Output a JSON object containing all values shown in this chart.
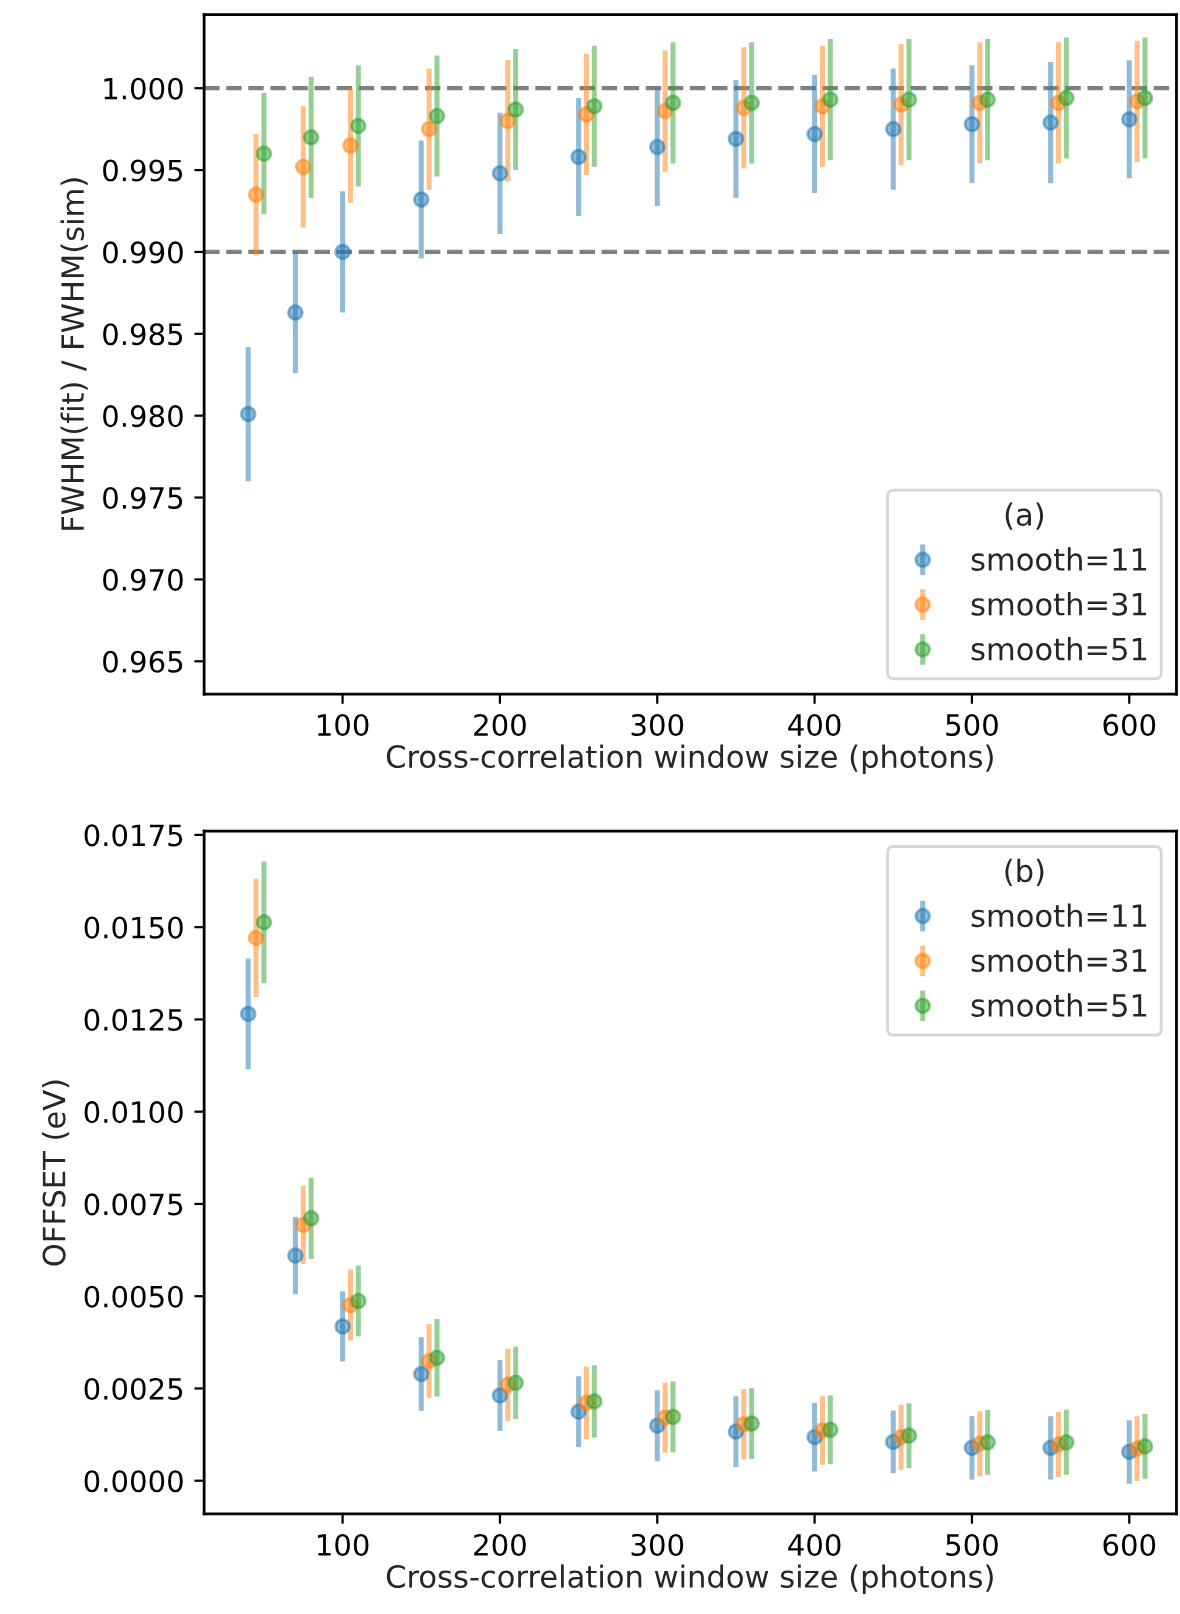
{
  "chart_data": [
    {
      "type": "scatter",
      "xlabel": "Cross-correlation window size (photons)",
      "ylabel": "FWHM(fit) / FWHM(sim)",
      "legend_title": "(a)",
      "legend": "bottom right",
      "marker": "circle",
      "grid": false,
      "xlim": [
        12,
        630
      ],
      "xticks": [
        100,
        200,
        300,
        400,
        500,
        600
      ],
      "ylim": [
        0.963,
        1.0045
      ],
      "yticks": [
        {
          "value": 0.965,
          "label": "0.965"
        },
        {
          "value": 0.97,
          "label": "0.970"
        },
        {
          "value": 0.975,
          "label": "0.975"
        },
        {
          "value": 0.98,
          "label": "0.980"
        },
        {
          "value": 0.985,
          "label": "0.985"
        },
        {
          "value": 0.99,
          "label": "0.990"
        },
        {
          "value": 0.995,
          "label": "0.995"
        },
        {
          "value": 1.0,
          "label": "1.000"
        }
      ],
      "ref_lines": [
        {
          "axis": "y",
          "value": 1.0,
          "color": "#808080",
          "line_style": "dashed"
        },
        {
          "axis": "y",
          "value": 0.99,
          "color": "#808080",
          "line_style": "dashed"
        }
      ],
      "series": [
        {
          "name": "smooth=11",
          "color": "#1f77b4",
          "x": [
            40,
            70,
            100,
            150,
            200,
            250,
            300,
            350,
            400,
            450,
            500,
            550,
            600
          ],
          "values": [
            0.9801,
            0.9863,
            0.99,
            0.9932,
            0.9948,
            0.9958,
            0.9964,
            0.9969,
            0.9972,
            0.9975,
            0.9978,
            0.9979,
            0.9981
          ],
          "errors": [
            0.0041,
            0.0037,
            0.0037,
            0.0036,
            0.0037,
            0.0036,
            0.0036,
            0.0036,
            0.0036,
            0.0037,
            0.0036,
            0.0037,
            0.0036
          ]
        },
        {
          "name": "smooth=31",
          "color": "#ff7f0e",
          "x": [
            45,
            75,
            105,
            155,
            205,
            255,
            305,
            355,
            405,
            455,
            505,
            555,
            605
          ],
          "values": [
            0.9935,
            0.9952,
            0.9965,
            0.9975,
            0.998,
            0.9984,
            0.9986,
            0.9988,
            0.9989,
            0.999,
            0.9991,
            0.9991,
            0.9992
          ],
          "errors": [
            0.0037,
            0.0037,
            0.0035,
            0.0037,
            0.0037,
            0.0037,
            0.0037,
            0.0037,
            0.0037,
            0.0037,
            0.0037,
            0.0037,
            0.0037
          ]
        },
        {
          "name": "smooth=51",
          "color": "#2ca02c",
          "x": [
            50,
            80,
            110,
            160,
            210,
            260,
            310,
            360,
            410,
            460,
            510,
            560,
            610
          ],
          "values": [
            0.996,
            0.997,
            0.9977,
            0.9983,
            0.9987,
            0.9989,
            0.9991,
            0.9991,
            0.9993,
            0.9993,
            0.9993,
            0.9994,
            0.9994
          ],
          "errors": [
            0.0037,
            0.0037,
            0.0037,
            0.0037,
            0.0037,
            0.0037,
            0.0037,
            0.0037,
            0.0037,
            0.0037,
            0.0037,
            0.0037,
            0.0037
          ]
        }
      ]
    },
    {
      "type": "scatter",
      "xlabel": "Cross-correlation window size (photons)",
      "ylabel": "OFFSET (eV)",
      "legend_title": "(b)",
      "legend": "top right",
      "marker": "circle",
      "grid": false,
      "xlim": [
        12,
        630
      ],
      "xticks": [
        100,
        200,
        300,
        400,
        500,
        600
      ],
      "ylim": [
        -0.0009,
        0.0176
      ],
      "yticks": [
        {
          "value": 0.0,
          "label": "0.0000"
        },
        {
          "value": 0.0025,
          "label": "0.0025"
        },
        {
          "value": 0.005,
          "label": "0.0050"
        },
        {
          "value": 0.0075,
          "label": "0.0075"
        },
        {
          "value": 0.01,
          "label": "0.0100"
        },
        {
          "value": 0.0125,
          "label": "0.0125"
        },
        {
          "value": 0.015,
          "label": "0.0150"
        },
        {
          "value": 0.0175,
          "label": "0.0175"
        }
      ],
      "series": [
        {
          "name": "smooth=11",
          "color": "#1f77b4",
          "x": [
            40,
            70,
            100,
            150,
            200,
            250,
            300,
            350,
            400,
            450,
            500,
            550,
            600
          ],
          "values": [
            0.01265,
            0.0061,
            0.00418,
            0.00289,
            0.00231,
            0.00187,
            0.00149,
            0.00133,
            0.00118,
            0.00105,
            0.00089,
            0.00089,
            0.00078
          ],
          "errors": [
            0.0015,
            0.00105,
            0.00095,
            0.001,
            0.00096,
            0.00096,
            0.00096,
            0.00096,
            0.00093,
            0.00085,
            0.00086,
            0.00086,
            0.00086
          ]
        },
        {
          "name": "smooth=31",
          "color": "#ff7f0e",
          "x": [
            45,
            75,
            105,
            155,
            205,
            255,
            305,
            355,
            405,
            455,
            505,
            555,
            605
          ],
          "values": [
            0.01471,
            0.00693,
            0.00476,
            0.00324,
            0.0026,
            0.00211,
            0.00171,
            0.00153,
            0.00136,
            0.00118,
            0.001,
            0.00098,
            0.00087
          ],
          "errors": [
            0.0016,
            0.00106,
            0.00096,
            0.001,
            0.00098,
            0.00098,
            0.00095,
            0.00095,
            0.00093,
            0.00088,
            0.00088,
            0.00088,
            0.00088
          ]
        },
        {
          "name": "smooth=51",
          "color": "#2ca02c",
          "x": [
            50,
            80,
            110,
            160,
            210,
            260,
            310,
            360,
            410,
            460,
            510,
            560,
            610
          ],
          "values": [
            0.01513,
            0.00711,
            0.00487,
            0.00333,
            0.00265,
            0.00215,
            0.00173,
            0.00155,
            0.00138,
            0.00122,
            0.00104,
            0.00104,
            0.00093
          ],
          "errors": [
            0.00165,
            0.0011,
            0.00096,
            0.00105,
            0.00098,
            0.00098,
            0.00096,
            0.00096,
            0.00093,
            0.00088,
            0.00088,
            0.00088,
            0.00088
          ]
        }
      ]
    }
  ]
}
